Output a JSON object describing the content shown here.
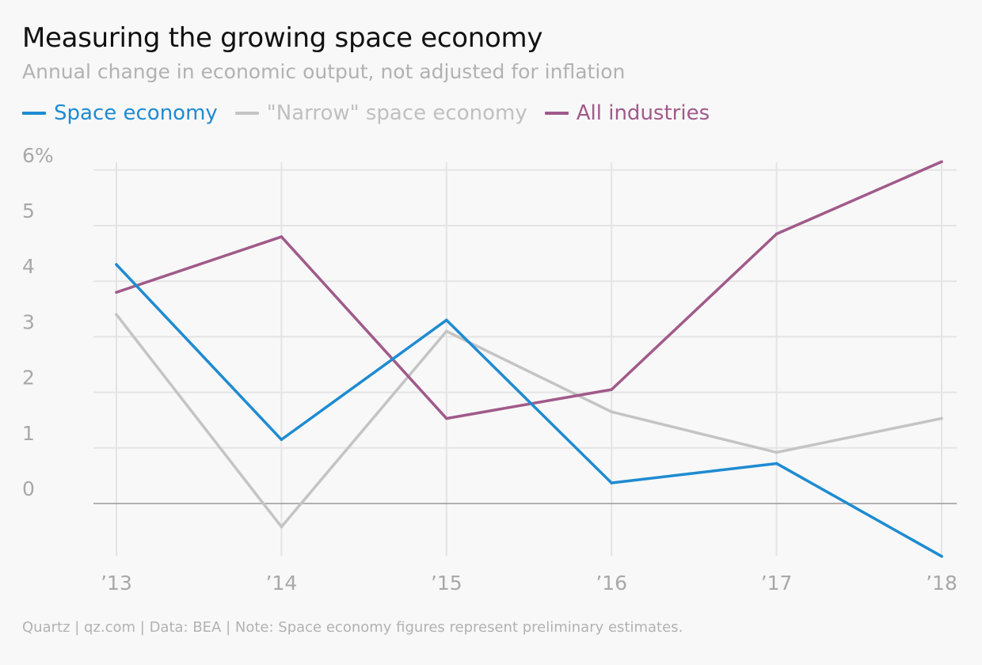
{
  "title": "Measuring the growing space economy",
  "subtitle": "Annual change in economic output, not adjusted for inflation",
  "footnote": "Quartz | qz.com | Data: BEA | Note: Space economy figures represent preliminary estimates.",
  "colors": {
    "space": "#1e8bd1",
    "narrow": "#c4c4c4",
    "all": "#a05a8a",
    "grid": "#e4e4e4",
    "zero": "#999999"
  },
  "chart_data": {
    "type": "line",
    "x": [
      "’13",
      "’14",
      "’15",
      "’16",
      "’17",
      "’18"
    ],
    "ylim": [
      -1,
      6
    ],
    "yticks": [
      0,
      1,
      2,
      3,
      4,
      5,
      6
    ],
    "ytick_labels": [
      "0",
      "1",
      "2",
      "3",
      "4",
      "5",
      "6%"
    ],
    "grid": true,
    "legend_position": "top-left",
    "series": [
      {
        "name": "Space economy",
        "color": "#1e8bd1",
        "values": [
          4.3,
          1.15,
          3.3,
          0.37,
          0.72,
          -0.95
        ]
      },
      {
        "name": "\"Narrow\" space economy",
        "color": "#c4c4c4",
        "values": [
          3.4,
          -0.42,
          3.1,
          1.65,
          0.92,
          1.53
        ]
      },
      {
        "name": "All industries",
        "color": "#a05a8a",
        "values": [
          3.8,
          4.8,
          1.53,
          2.05,
          4.85,
          6.15
        ]
      }
    ]
  }
}
